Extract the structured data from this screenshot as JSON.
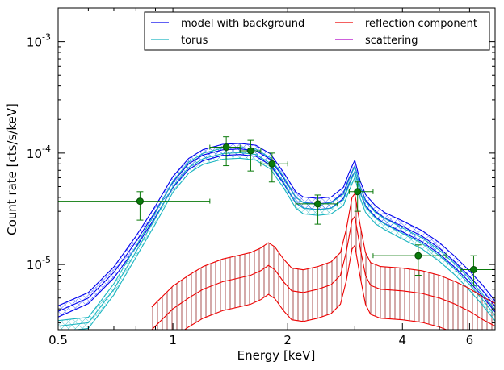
{
  "chart_data": {
    "type": "line",
    "xlabel": "Energy [keV]",
    "ylabel": "Count rate [cts/s/keV]",
    "xscale": "log",
    "yscale": "log",
    "xlim": [
      0.5,
      7.0
    ],
    "ylim": [
      2.6e-06,
      0.002
    ],
    "x_ticks": [
      {
        "value": 0.5,
        "label": "0.5"
      },
      {
        "value": 1,
        "label": "1"
      },
      {
        "value": 2,
        "label": "2"
      },
      {
        "value": 4,
        "label": "4"
      },
      {
        "value": 6,
        "label": "6"
      }
    ],
    "y_ticks": [
      {
        "value": 1e-05,
        "base": "10",
        "exp": "-5"
      },
      {
        "value": 0.0001,
        "base": "10",
        "exp": "-4"
      },
      {
        "value": 0.001,
        "base": "10",
        "exp": "-3"
      }
    ],
    "legend": {
      "placement": "top-right",
      "columns": 2,
      "entries": [
        {
          "label": "model with background",
          "color": "#0000ee"
        },
        {
          "label": "reflection component",
          "color": "#ee0000"
        },
        {
          "label": "torus",
          "color": "#1ab5c0"
        },
        {
          "label": "scattering",
          "color": "#b000c8"
        }
      ]
    },
    "series": [
      {
        "name": "model with background",
        "color": "#0000ee",
        "x": [
          0.5,
          0.6,
          0.7,
          0.8,
          0.9,
          1.0,
          1.1,
          1.2,
          1.35,
          1.5,
          1.65,
          1.8,
          1.95,
          2.1,
          2.2,
          2.4,
          2.6,
          2.8,
          2.9,
          3.0,
          3.1,
          3.2,
          3.4,
          3.6,
          4.0,
          4.5,
          5.0,
          5.5,
          6.0,
          6.5,
          7.0
        ],
        "y": [
          3.8e-06,
          5e-06,
          8.5e-06,
          1.6e-05,
          3e-05,
          5.5e-05,
          8e-05,
          9.6e-05,
          0.000107,
          0.000109,
          0.000105,
          8.8e-05,
          6e-05,
          4e-05,
          3.6e-05,
          3.5e-05,
          3.6e-05,
          4.4e-05,
          6e-05,
          7.7e-05,
          5e-05,
          3.8e-05,
          3e-05,
          2.6e-05,
          2.2e-05,
          1.8e-05,
          1.4e-05,
          1.05e-05,
          7.8e-06,
          5.8e-06,
          4.2e-06
        ],
        "band": {
          "upper": 1.12,
          "lower": 0.89
        }
      },
      {
        "name": "torus",
        "color": "#1ab5c0",
        "x": [
          0.5,
          0.6,
          0.7,
          0.8,
          0.9,
          1.0,
          1.1,
          1.2,
          1.35,
          1.5,
          1.65,
          1.8,
          1.95,
          2.1,
          2.2,
          2.4,
          2.6,
          2.8,
          2.9,
          3.0,
          3.1,
          3.2,
          3.4,
          3.6,
          4.0,
          4.5,
          5.0,
          5.5,
          6.0,
          6.5,
          7.0
        ],
        "y": [
          2.8e-06,
          3e-06,
          6e-06,
          1.3e-05,
          2.6e-05,
          5e-05,
          7.4e-05,
          8.9e-05,
          9.9e-05,
          0.000101,
          9.7e-05,
          8.1e-05,
          5.5e-05,
          3.6e-05,
          3.2e-05,
          3.1e-05,
          3.2e-05,
          3.8e-05,
          5.2e-05,
          6.8e-05,
          4.4e-05,
          3.3e-05,
          2.6e-05,
          2.3e-05,
          1.9e-05,
          1.55e-05,
          1.2e-05,
          9e-06,
          6.6e-06,
          4.8e-06,
          3.5e-06
        ],
        "band": {
          "upper": 1.12,
          "lower": 0.89
        }
      },
      {
        "name": "reflection component",
        "color": "#ee0000",
        "x": [
          0.88,
          1.0,
          1.1,
          1.2,
          1.35,
          1.5,
          1.6,
          1.7,
          1.78,
          1.85,
          1.95,
          2.05,
          2.2,
          2.4,
          2.6,
          2.75,
          2.85,
          2.95,
          3.0,
          3.1,
          3.2,
          3.3,
          3.5,
          4.0,
          4.5,
          5.0,
          5.5,
          6.0,
          6.5,
          7.0
        ],
        "y": [
          2.6e-06,
          4e-06,
          5e-06,
          6e-06,
          7e-06,
          7.6e-06,
          8e-06,
          8.8e-06,
          9.8e-06,
          9e-06,
          7e-06,
          5.8e-06,
          5.6e-06,
          6e-06,
          6.6e-06,
          8e-06,
          1.3e-05,
          2.5e-05,
          2.7e-05,
          1.4e-05,
          8e-06,
          6.5e-06,
          6e-06,
          5.8e-06,
          5.5e-06,
          5e-06,
          4.4e-06,
          3.8e-06,
          3.2e-06,
          2.8e-06
        ],
        "band": {
          "upper": 1.6,
          "lower": 0.55
        }
      }
    ],
    "data_points": {
      "color": "#0a7a0a",
      "points": [
        {
          "x": 0.82,
          "y": 3.7e-05,
          "xlo": 0.5,
          "xhi": 1.25,
          "ylo": 2.5e-05,
          "yhi": 4.5e-05
        },
        {
          "x": 1.38,
          "y": 0.000113,
          "xlo": 1.25,
          "xhi": 1.5,
          "ylo": 7.7e-05,
          "yhi": 0.00014
        },
        {
          "x": 1.6,
          "y": 0.000105,
          "xlo": 1.5,
          "xhi": 1.7,
          "ylo": 6.9e-05,
          "yhi": 0.00013
        },
        {
          "x": 1.82,
          "y": 8e-05,
          "xlo": 1.7,
          "xhi": 2.0,
          "ylo": 5.5e-05,
          "yhi": 0.0001
        },
        {
          "x": 2.4,
          "y": 3.5e-05,
          "xlo": 2.1,
          "xhi": 2.7,
          "ylo": 2.3e-05,
          "yhi": 4.2e-05
        },
        {
          "x": 3.05,
          "y": 4.5e-05,
          "xlo": 2.9,
          "xhi": 3.35,
          "ylo": 3e-05,
          "yhi": 5.5e-05
        },
        {
          "x": 4.4,
          "y": 1.2e-05,
          "xlo": 3.35,
          "xhi": 5.2,
          "ylo": 8e-06,
          "yhi": 1.5e-05
        },
        {
          "x": 6.15,
          "y": 9e-06,
          "xlo": 5.7,
          "xhi": 7.0,
          "ylo": 6.5e-06,
          "yhi": 1.2e-05
        }
      ]
    }
  }
}
